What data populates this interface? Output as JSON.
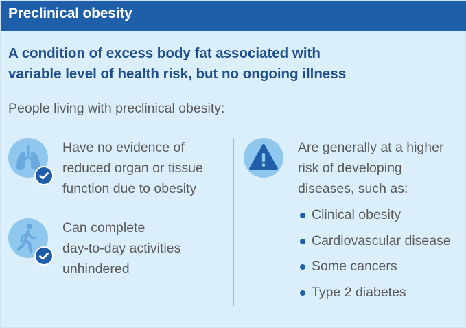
{
  "header": {
    "title": "Preclinical obesity"
  },
  "subtitle": {
    "line1": "A condition of excess body fat associated with",
    "line2": "variable level of health risk, but no ongoing illness"
  },
  "intro": "People living with preclinical obesity:",
  "left_items": [
    {
      "icon": "lungs-icon",
      "lines": [
        "Have no evidence of",
        "reduced organ or tissue",
        "function due to obesity"
      ]
    },
    {
      "icon": "walking-person-icon",
      "lines": [
        "Can complete",
        "day-to-day activities",
        "unhindered"
      ]
    }
  ],
  "right_item": {
    "icon": "warning-icon",
    "lines": [
      "Are generally at a higher",
      "risk of developing",
      "diseases, such as:"
    ],
    "bullets": [
      "Clinical obesity",
      "Cardiovascular disease",
      "Some cancers",
      "Type 2 diabetes"
    ]
  },
  "colors": {
    "header_bg": "#1f5ea8",
    "panel_bg": "#dbeffb",
    "icon_bg": "#8fc7ee",
    "accent": "#1f5ea8",
    "body_text": "#5a5a5a"
  }
}
